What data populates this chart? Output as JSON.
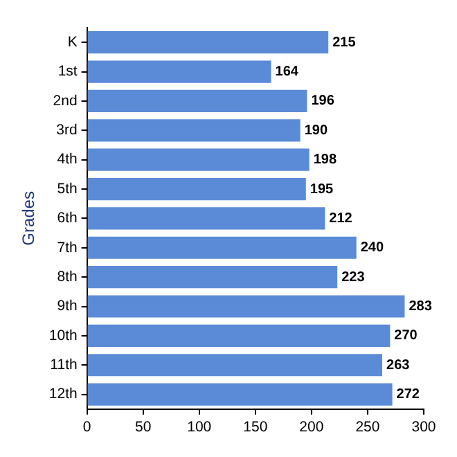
{
  "chart_data": {
    "type": "bar",
    "orientation": "horizontal",
    "ylabel": "Grades",
    "categories": [
      "K",
      "1st",
      "2nd",
      "3rd",
      "4th",
      "5th",
      "6th",
      "7th",
      "8th",
      "9th",
      "10th",
      "11th",
      "12th"
    ],
    "values": [
      215,
      164,
      196,
      190,
      198,
      195,
      212,
      240,
      223,
      283,
      270,
      263,
      272
    ],
    "color": "#5b8bd6",
    "xlim": [
      0,
      300
    ],
    "xticks": [
      0,
      50,
      100,
      150,
      200,
      250,
      300
    ],
    "data_labels": true,
    "grid": false,
    "legend": false
  }
}
